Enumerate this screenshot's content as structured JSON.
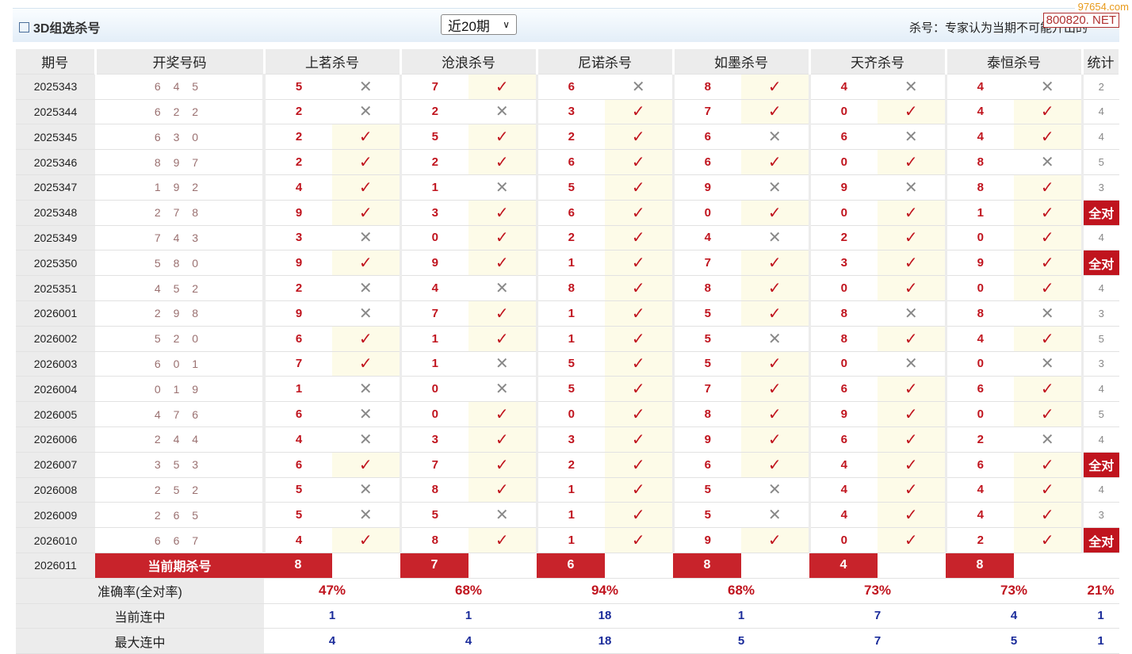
{
  "header": {
    "title": "3D组选杀号",
    "period_select": "近20期",
    "note": "杀号：专家认为当期不可能开出的",
    "watermark_top": "97654.com",
    "watermark_box": "800820. NET"
  },
  "columns": {
    "period": "期号",
    "draw": "开奖号码",
    "experts": [
      "上茗杀号",
      "沧浪杀号",
      "尼诺杀号",
      "如墨杀号",
      "天齐杀号",
      "泰恒杀号"
    ],
    "stat": "统计"
  },
  "rows": [
    {
      "period": "2025343",
      "draw": "6 4 5",
      "kills": [
        [
          "5",
          0
        ],
        [
          "7",
          1
        ],
        [
          "6",
          0
        ],
        [
          "8",
          1
        ],
        [
          "4",
          0
        ],
        [
          "4",
          0
        ]
      ],
      "stat": "2"
    },
    {
      "period": "2025344",
      "draw": "6 2 2",
      "kills": [
        [
          "2",
          0
        ],
        [
          "2",
          0
        ],
        [
          "3",
          1
        ],
        [
          "7",
          1
        ],
        [
          "0",
          1
        ],
        [
          "4",
          1
        ]
      ],
      "stat": "4"
    },
    {
      "period": "2025345",
      "draw": "6 3 0",
      "kills": [
        [
          "2",
          1
        ],
        [
          "5",
          1
        ],
        [
          "2",
          1
        ],
        [
          "6",
          0
        ],
        [
          "6",
          0
        ],
        [
          "4",
          1
        ]
      ],
      "stat": "4"
    },
    {
      "period": "2025346",
      "draw": "8 9 7",
      "kills": [
        [
          "2",
          1
        ],
        [
          "2",
          1
        ],
        [
          "6",
          1
        ],
        [
          "6",
          1
        ],
        [
          "0",
          1
        ],
        [
          "8",
          0
        ]
      ],
      "stat": "5"
    },
    {
      "period": "2025347",
      "draw": "1 9 2",
      "kills": [
        [
          "4",
          1
        ],
        [
          "1",
          0
        ],
        [
          "5",
          1
        ],
        [
          "9",
          0
        ],
        [
          "9",
          0
        ],
        [
          "8",
          1
        ]
      ],
      "stat": "3"
    },
    {
      "period": "2025348",
      "draw": "2 7 8",
      "kills": [
        [
          "9",
          1
        ],
        [
          "3",
          1
        ],
        [
          "6",
          1
        ],
        [
          "0",
          1
        ],
        [
          "0",
          1
        ],
        [
          "1",
          1
        ]
      ],
      "stat": "全对"
    },
    {
      "period": "2025349",
      "draw": "7 4 3",
      "kills": [
        [
          "3",
          0
        ],
        [
          "0",
          1
        ],
        [
          "2",
          1
        ],
        [
          "4",
          0
        ],
        [
          "2",
          1
        ],
        [
          "0",
          1
        ]
      ],
      "stat": "4"
    },
    {
      "period": "2025350",
      "draw": "5 8 0",
      "kills": [
        [
          "9",
          1
        ],
        [
          "9",
          1
        ],
        [
          "1",
          1
        ],
        [
          "7",
          1
        ],
        [
          "3",
          1
        ],
        [
          "9",
          1
        ]
      ],
      "stat": "全对"
    },
    {
      "period": "2025351",
      "draw": "4 5 2",
      "kills": [
        [
          "2",
          0
        ],
        [
          "4",
          0
        ],
        [
          "8",
          1
        ],
        [
          "8",
          1
        ],
        [
          "0",
          1
        ],
        [
          "0",
          1
        ]
      ],
      "stat": "4"
    },
    {
      "period": "2026001",
      "draw": "2 9 8",
      "kills": [
        [
          "9",
          0
        ],
        [
          "7",
          1
        ],
        [
          "1",
          1
        ],
        [
          "5",
          1
        ],
        [
          "8",
          0
        ],
        [
          "8",
          0
        ]
      ],
      "stat": "3"
    },
    {
      "period": "2026002",
      "draw": "5 2 0",
      "kills": [
        [
          "6",
          1
        ],
        [
          "1",
          1
        ],
        [
          "1",
          1
        ],
        [
          "5",
          0
        ],
        [
          "8",
          1
        ],
        [
          "4",
          1
        ]
      ],
      "stat": "5"
    },
    {
      "period": "2026003",
      "draw": "6 0 1",
      "kills": [
        [
          "7",
          1
        ],
        [
          "1",
          0
        ],
        [
          "5",
          1
        ],
        [
          "5",
          1
        ],
        [
          "0",
          0
        ],
        [
          "0",
          0
        ]
      ],
      "stat": "3"
    },
    {
      "period": "2026004",
      "draw": "0 1 9",
      "kills": [
        [
          "1",
          0
        ],
        [
          "0",
          0
        ],
        [
          "5",
          1
        ],
        [
          "7",
          1
        ],
        [
          "6",
          1
        ],
        [
          "6",
          1
        ]
      ],
      "stat": "4"
    },
    {
      "period": "2026005",
      "draw": "4 7 6",
      "kills": [
        [
          "6",
          0
        ],
        [
          "0",
          1
        ],
        [
          "0",
          1
        ],
        [
          "8",
          1
        ],
        [
          "9",
          1
        ],
        [
          "0",
          1
        ]
      ],
      "stat": "5"
    },
    {
      "period": "2026006",
      "draw": "2 4 4",
      "kills": [
        [
          "4",
          0
        ],
        [
          "3",
          1
        ],
        [
          "3",
          1
        ],
        [
          "9",
          1
        ],
        [
          "6",
          1
        ],
        [
          "2",
          0
        ]
      ],
      "stat": "4"
    },
    {
      "period": "2026007",
      "draw": "3 5 3",
      "kills": [
        [
          "6",
          1
        ],
        [
          "7",
          1
        ],
        [
          "2",
          1
        ],
        [
          "6",
          1
        ],
        [
          "4",
          1
        ],
        [
          "6",
          1
        ]
      ],
      "stat": "全对"
    },
    {
      "period": "2026008",
      "draw": "2 5 2",
      "kills": [
        [
          "5",
          0
        ],
        [
          "8",
          1
        ],
        [
          "1",
          1
        ],
        [
          "5",
          0
        ],
        [
          "4",
          1
        ],
        [
          "4",
          1
        ]
      ],
      "stat": "4"
    },
    {
      "period": "2026009",
      "draw": "2 6 5",
      "kills": [
        [
          "5",
          0
        ],
        [
          "5",
          0
        ],
        [
          "1",
          1
        ],
        [
          "5",
          0
        ],
        [
          "4",
          1
        ],
        [
          "4",
          1
        ]
      ],
      "stat": "3"
    },
    {
      "period": "2026010",
      "draw": "6 6 7",
      "kills": [
        [
          "4",
          1
        ],
        [
          "8",
          1
        ],
        [
          "1",
          1
        ],
        [
          "9",
          1
        ],
        [
          "0",
          1
        ],
        [
          "2",
          1
        ]
      ],
      "stat": "全对"
    }
  ],
  "current": {
    "period": "2026011",
    "label": "当前期杀号",
    "kills": [
      "8",
      "7",
      "6",
      "8",
      "4",
      "8"
    ]
  },
  "summary": [
    {
      "label": "准确率(全对率)",
      "values": [
        "47%",
        "68%",
        "94%",
        "68%",
        "73%",
        "73%"
      ],
      "stat": "21%"
    },
    {
      "label": "当前连中",
      "values": [
        "1",
        "1",
        "18",
        "1",
        "7",
        "4"
      ],
      "stat": "1"
    },
    {
      "label": "最大连中",
      "values": [
        "4",
        "4",
        "18",
        "5",
        "7",
        "5"
      ],
      "stat": "1"
    }
  ],
  "marks": {
    "hit": "✓",
    "miss": "✕"
  },
  "colors": {
    "accent": "#c0141e",
    "hit_bg": "#fdfbe8",
    "count": "#1a2b9a"
  }
}
